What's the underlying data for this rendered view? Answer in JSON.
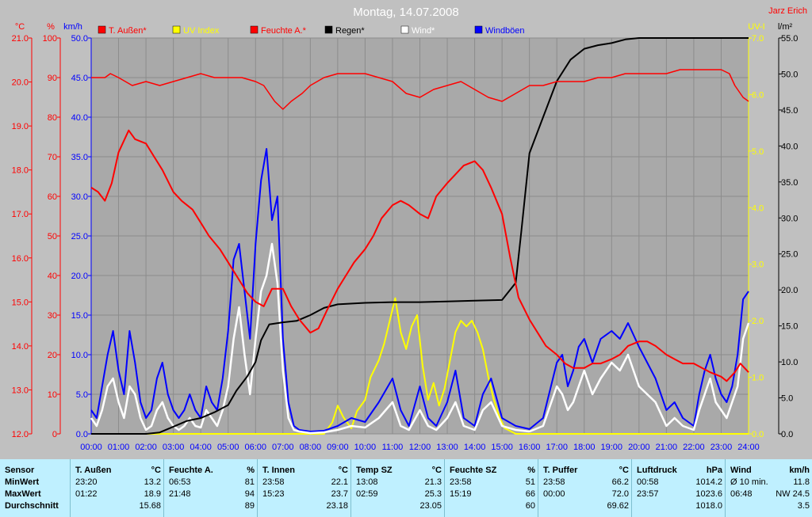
{
  "chart_data": {
    "type": "line",
    "title": "Montag, 14.07.2008",
    "author": "Jarz Erich",
    "x_ticks": [
      "00:00",
      "01:00",
      "02:00",
      "03:00",
      "04:00",
      "05:00",
      "06:00",
      "07:00",
      "08:00",
      "09:00",
      "10:00",
      "11:00",
      "12:00",
      "13:00",
      "14:00",
      "15:00",
      "16:00",
      "17:00",
      "18:00",
      "19:00",
      "20:00",
      "21:00",
      "22:00",
      "23:00",
      "24:00"
    ],
    "xlim": [
      0,
      24
    ],
    "axes": {
      "temp": {
        "unit": "°C",
        "range": [
          12.0,
          21.0
        ],
        "ticks": [
          "12.0",
          "13.0",
          "14.0",
          "15.0",
          "16.0",
          "17.0",
          "18.0",
          "19.0",
          "20.0",
          "21.0"
        ]
      },
      "hum": {
        "unit": "%",
        "range": [
          0,
          100
        ],
        "ticks": [
          "0",
          "10",
          "20",
          "30",
          "40",
          "50",
          "60",
          "70",
          "80",
          "90",
          "100"
        ]
      },
      "wind": {
        "unit": "km/h",
        "range": [
          0,
          50
        ],
        "ticks": [
          "0.0",
          "5.0",
          "10.0",
          "15.0",
          "20.0",
          "25.0",
          "30.0",
          "35.0",
          "40.0",
          "45.0",
          "50.0"
        ]
      },
      "uv": {
        "unit": "UV-I",
        "range": [
          0,
          7
        ],
        "ticks": [
          "0.0",
          "1.0",
          "2.0",
          "3.0",
          "4.0",
          "5.0",
          "6.0",
          "7.0"
        ]
      },
      "rain": {
        "unit": "l/m²",
        "range": [
          0,
          55
        ],
        "ticks": [
          "0.0",
          "5.0",
          "10.0",
          "15.0",
          "20.0",
          "25.0",
          "30.0",
          "35.0",
          "40.0",
          "45.0",
          "50.0",
          "55.0"
        ]
      }
    },
    "legend": [
      {
        "name": "T. Außen*",
        "color": "#ff0000"
      },
      {
        "name": "UV Index",
        "color": "#ffff00"
      },
      {
        "name": "Feuchte A.*",
        "color": "#ff0000"
      },
      {
        "name": "Regen*",
        "color": "#000000"
      },
      {
        "name": "Wind*",
        "color": "#ffffff"
      },
      {
        "name": "Windböen",
        "color": "#0000ff"
      }
    ],
    "series": {
      "temp": {
        "name": "T. Außen*",
        "color": "#ff0000",
        "axis": "temp",
        "x": [
          0,
          0.25,
          0.5,
          0.75,
          1,
          1.37,
          1.6,
          2,
          2.3,
          2.6,
          3,
          3.3,
          3.7,
          4,
          4.3,
          4.7,
          5,
          5.3,
          5.7,
          6,
          6.3,
          6.6,
          7,
          7.3,
          7.6,
          8,
          8.3,
          8.6,
          9,
          9.3,
          9.6,
          10,
          10.3,
          10.6,
          11,
          11.3,
          11.6,
          12,
          12.3,
          12.6,
          13,
          13.3,
          13.6,
          14,
          14.3,
          14.6,
          15,
          15.3,
          15.6,
          16,
          16.3,
          16.6,
          17,
          17.3,
          17.6,
          18,
          18.3,
          18.6,
          19,
          19.3,
          19.6,
          20,
          20.3,
          20.6,
          21,
          21.3,
          21.6,
          22,
          22.3,
          22.6,
          23,
          23.2,
          23.5,
          23.7,
          24
        ],
        "y": [
          17.6,
          17.5,
          17.3,
          17.7,
          18.4,
          18.9,
          18.7,
          18.6,
          18.3,
          18.0,
          17.5,
          17.3,
          17.1,
          16.8,
          16.5,
          16.2,
          15.9,
          15.6,
          15.2,
          15.0,
          14.9,
          15.3,
          15.3,
          14.9,
          14.6,
          14.3,
          14.4,
          14.8,
          15.3,
          15.6,
          15.9,
          16.2,
          16.5,
          16.9,
          17.2,
          17.3,
          17.2,
          17.0,
          16.9,
          17.4,
          17.7,
          17.9,
          18.1,
          18.2,
          18.0,
          17.6,
          17.0,
          16.0,
          15.1,
          14.6,
          14.3,
          14.0,
          13.8,
          13.6,
          13.5,
          13.5,
          13.6,
          13.6,
          13.7,
          13.8,
          14.0,
          14.1,
          14.1,
          14.0,
          13.8,
          13.7,
          13.6,
          13.6,
          13.5,
          13.4,
          13.3,
          13.2,
          13.4,
          13.6,
          13.4
        ]
      },
      "humidity": {
        "name": "Feuchte A.*",
        "color": "#ff0000",
        "axis": "hum",
        "x": [
          0,
          0.5,
          0.7,
          1,
          1.5,
          2,
          2.5,
          3,
          3.5,
          4,
          4.5,
          5,
          5.5,
          6,
          6.3,
          6.7,
          7,
          7.3,
          7.7,
          8,
          8.5,
          9,
          9.5,
          10,
          10.5,
          11,
          11.5,
          12,
          12.5,
          13,
          13.5,
          14,
          14.5,
          15,
          15.5,
          16,
          16.5,
          17,
          17.5,
          18,
          18.5,
          19,
          19.5,
          20,
          20.5,
          21,
          21.5,
          22,
          22.5,
          23,
          23.3,
          23.5,
          23.8,
          24
        ],
        "y": [
          90,
          90,
          91,
          90,
          88,
          89,
          88,
          89,
          90,
          91,
          90,
          90,
          90,
          89,
          88,
          84,
          82,
          84,
          86,
          88,
          90,
          91,
          91,
          91,
          90,
          89,
          86,
          85,
          87,
          88,
          89,
          87,
          85,
          84,
          86,
          88,
          88,
          89,
          89,
          89,
          90,
          90,
          91,
          91,
          91,
          91,
          92,
          92,
          92,
          92,
          91,
          88,
          85,
          84
        ]
      },
      "rain": {
        "name": "Regen*",
        "color": "#000000",
        "axis": "rain",
        "x": [
          0,
          1,
          2,
          2.5,
          3,
          3.5,
          4,
          4.5,
          5,
          5.3,
          5.7,
          6,
          6.2,
          6.5,
          7,
          7.5,
          8,
          8.5,
          9,
          10,
          11,
          12,
          13,
          14,
          15,
          15.5,
          15.7,
          16,
          16.5,
          17,
          17.5,
          18,
          18.5,
          19,
          19.5,
          20,
          20.5,
          21,
          22,
          23,
          24
        ],
        "y": [
          0,
          0,
          0,
          0.2,
          1,
          1.8,
          2.2,
          3,
          4,
          6,
          8,
          10,
          13,
          15.2,
          15.5,
          15.7,
          16.5,
          17.5,
          18,
          18.2,
          18.3,
          18.3,
          18.4,
          18.5,
          18.6,
          21,
          28,
          39,
          44,
          49,
          52,
          53.5,
          54,
          54.3,
          54.8,
          55,
          55,
          55,
          55,
          55,
          55
        ]
      },
      "wind": {
        "name": "Wind*",
        "color": "#ffffff",
        "axis": "wind",
        "x": [
          0,
          0.2,
          0.4,
          0.6,
          0.8,
          1,
          1.2,
          1.4,
          1.6,
          1.8,
          2,
          2.2,
          2.4,
          2.6,
          2.8,
          3,
          3.2,
          3.4,
          3.6,
          3.8,
          4,
          4.2,
          4.4,
          4.6,
          4.8,
          5,
          5.2,
          5.4,
          5.6,
          5.8,
          6,
          6.2,
          6.4,
          6.6,
          6.8,
          7,
          7.2,
          7.4,
          7.6,
          7.8,
          8,
          8.5,
          9,
          9.5,
          10,
          10.5,
          11,
          11.3,
          11.6,
          12,
          12.3,
          12.6,
          13,
          13.3,
          13.6,
          14,
          14.3,
          14.6,
          15,
          15.5,
          16,
          16.5,
          17,
          17.2,
          17.4,
          17.6,
          17.8,
          18,
          18.3,
          18.6,
          19,
          19.3,
          19.6,
          20,
          20.3,
          20.6,
          21,
          21.3,
          21.6,
          22,
          22.2,
          22.4,
          22.6,
          22.8,
          23,
          23.2,
          23.4,
          23.6,
          23.8,
          24
        ],
        "y": [
          2,
          1,
          3,
          6,
          7,
          4,
          2,
          6,
          5,
          2,
          0.5,
          1,
          3,
          4,
          2,
          1,
          0.5,
          1,
          2,
          1,
          0.8,
          3,
          2,
          1,
          3,
          6,
          12,
          16,
          10,
          5,
          12,
          18,
          20,
          24,
          19,
          8,
          2,
          0.5,
          0.3,
          0.2,
          0.1,
          0.2,
          0.5,
          1,
          0.8,
          2,
          4,
          1,
          0.5,
          3,
          1,
          0.5,
          2,
          4,
          1,
          0.5,
          3,
          4,
          1,
          0.5,
          0.3,
          1,
          6,
          5,
          3,
          4,
          6,
          8,
          5,
          7,
          9,
          8,
          10,
          6,
          5,
          4,
          1,
          2,
          1,
          0.5,
          3,
          5,
          7,
          4,
          3,
          2,
          4,
          6,
          12,
          14
        ]
      },
      "gusts": {
        "name": "Windböen",
        "color": "#0000ff",
        "axis": "wind",
        "x": [
          0,
          0.2,
          0.4,
          0.6,
          0.8,
          1,
          1.2,
          1.4,
          1.6,
          1.8,
          2,
          2.2,
          2.4,
          2.6,
          2.8,
          3,
          3.2,
          3.4,
          3.6,
          3.8,
          4,
          4.2,
          4.4,
          4.6,
          4.8,
          5,
          5.2,
          5.4,
          5.6,
          5.8,
          6,
          6.2,
          6.4,
          6.6,
          6.8,
          7,
          7.2,
          7.4,
          7.6,
          7.8,
          8,
          8.5,
          9,
          9.5,
          10,
          10.5,
          11,
          11.3,
          11.6,
          12,
          12.3,
          12.6,
          13,
          13.3,
          13.6,
          14,
          14.3,
          14.6,
          15,
          15.5,
          16,
          16.5,
          17,
          17.2,
          17.4,
          17.6,
          17.8,
          18,
          18.3,
          18.6,
          19,
          19.3,
          19.6,
          20,
          20.3,
          20.6,
          21,
          21.3,
          21.6,
          22,
          22.2,
          22.4,
          22.6,
          22.8,
          23,
          23.2,
          23.4,
          23.6,
          23.8,
          24
        ],
        "y": [
          3,
          2,
          6,
          10,
          13,
          8,
          5,
          13,
          9,
          4,
          2,
          3,
          7,
          9,
          5,
          3,
          2,
          3,
          5,
          3,
          2,
          6,
          4,
          3,
          7,
          13,
          22,
          24,
          18,
          12,
          24,
          32,
          36,
          27,
          30,
          12,
          4,
          1,
          0.5,
          0.4,
          0.3,
          0.4,
          1,
          2,
          1.5,
          4,
          7,
          3,
          1,
          6,
          2,
          1,
          4,
          8,
          2,
          1,
          5,
          7,
          2,
          1,
          0.6,
          2,
          9,
          10,
          6,
          8,
          11,
          12,
          9,
          12,
          13,
          12,
          14,
          11,
          9,
          7,
          3,
          4,
          2,
          1,
          5,
          8,
          10,
          7,
          5,
          4,
          6,
          10,
          17,
          18
        ]
      },
      "uv": {
        "name": "UV Index",
        "color": "#ffff00",
        "axis": "uv",
        "x": [
          0,
          8.5,
          8.8,
          9,
          9.2,
          9.5,
          9.7,
          10,
          10.2,
          10.5,
          10.7,
          10.9,
          11.1,
          11.3,
          11.5,
          11.7,
          11.9,
          12.1,
          12.3,
          12.5,
          12.7,
          12.9,
          13.1,
          13.3,
          13.5,
          13.7,
          13.9,
          14.1,
          14.3,
          14.5,
          14.7,
          14.9,
          15.1,
          15.3,
          15.5,
          16,
          17,
          18,
          19,
          20,
          21,
          22,
          23,
          24
        ],
        "y": [
          0,
          0,
          0.2,
          0.5,
          0.3,
          0.1,
          0.4,
          0.6,
          1.0,
          1.3,
          1.6,
          2.0,
          2.4,
          1.8,
          1.5,
          1.9,
          2.1,
          1.2,
          0.6,
          0.9,
          0.5,
          0.8,
          1.3,
          1.8,
          2.0,
          1.9,
          2.0,
          1.8,
          1.5,
          1.0,
          0.6,
          0.3,
          0.1,
          0.05,
          0,
          0,
          0,
          0,
          0,
          0,
          0,
          0,
          0,
          0
        ]
      }
    }
  },
  "stats": {
    "sensor_label": "Sensor",
    "row_labels": [
      "MinWert",
      "MaxWert",
      "Durchschnitt"
    ],
    "columns": [
      {
        "name": "T. Außen",
        "unit": "°C",
        "min_time": "23:20",
        "min": "13.2",
        "max_time": "01:22",
        "max": "18.9",
        "avg": "15.68"
      },
      {
        "name": "Feuchte A.",
        "unit": "%",
        "min_time": "06:53",
        "min": "81",
        "max_time": "21:48",
        "max": "94",
        "avg": "89"
      },
      {
        "name": "T. Innen",
        "unit": "°C",
        "min_time": "23:58",
        "min": "22.1",
        "max_time": "15:23",
        "max": "23.7",
        "avg": "23.18"
      },
      {
        "name": "Temp SZ",
        "unit": "°C",
        "min_time": "13:08",
        "min": "21.3",
        "max_time": "02:59",
        "max": "25.3",
        "avg": "23.05"
      },
      {
        "name": "Feuchte SZ",
        "unit": "%",
        "min_time": "23:58",
        "min": "51",
        "max_time": "15:19",
        "max": "66",
        "avg": "60"
      },
      {
        "name": "T. Puffer",
        "unit": "°C",
        "min_time": "23:58",
        "min": "66.2",
        "max_time": "00:00",
        "max": "72.0",
        "avg": "69.62"
      },
      {
        "name": "Luftdruck",
        "unit": "hPa",
        "min_time": "00:58",
        "min": "1014.2",
        "max_time": "23:57",
        "max": "1023.6",
        "avg": "1018.0"
      },
      {
        "name": "Wind",
        "unit": "km/h",
        "min_time": "Ø 10 min.",
        "min": "11.8",
        "max_time": "06:48",
        "max": "NW 24.5",
        "avg": "3.5"
      }
    ]
  }
}
